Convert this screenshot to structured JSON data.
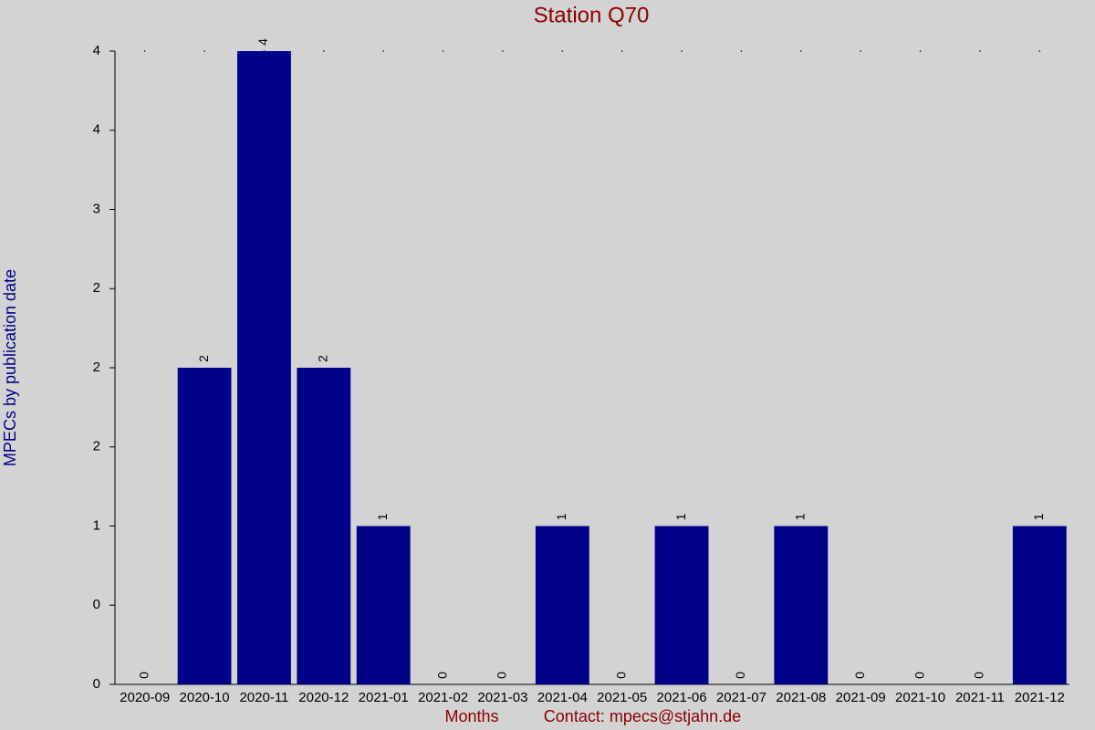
{
  "chart_data": {
    "type": "bar",
    "title": "Station Q70",
    "x_label": "Months",
    "contact": "Contact: mpecs@stjahn.de",
    "y_label": "MPECs by publication date",
    "categories": [
      "2020-09",
      "2020-10",
      "2020-11",
      "2020-12",
      "2021-01",
      "2021-02",
      "2021-03",
      "2021-04",
      "2021-05",
      "2021-06",
      "2021-07",
      "2021-08",
      "2021-09",
      "2021-10",
      "2021-11",
      "2021-12"
    ],
    "values": [
      0,
      2,
      4,
      2,
      1,
      0,
      0,
      1,
      0,
      1,
      0,
      1,
      0,
      0,
      0,
      1
    ],
    "color": "#000088",
    "ylim": [
      0,
      4
    ],
    "yticks": [
      0,
      {
        "value": 0.5,
        "label": "0"
      },
      1,
      {
        "value": 1.5,
        "label": "2"
      },
      2,
      {
        "value": 2.5,
        "label": "2"
      },
      3,
      {
        "value": 3.5,
        "label": "4"
      },
      4
    ]
  }
}
